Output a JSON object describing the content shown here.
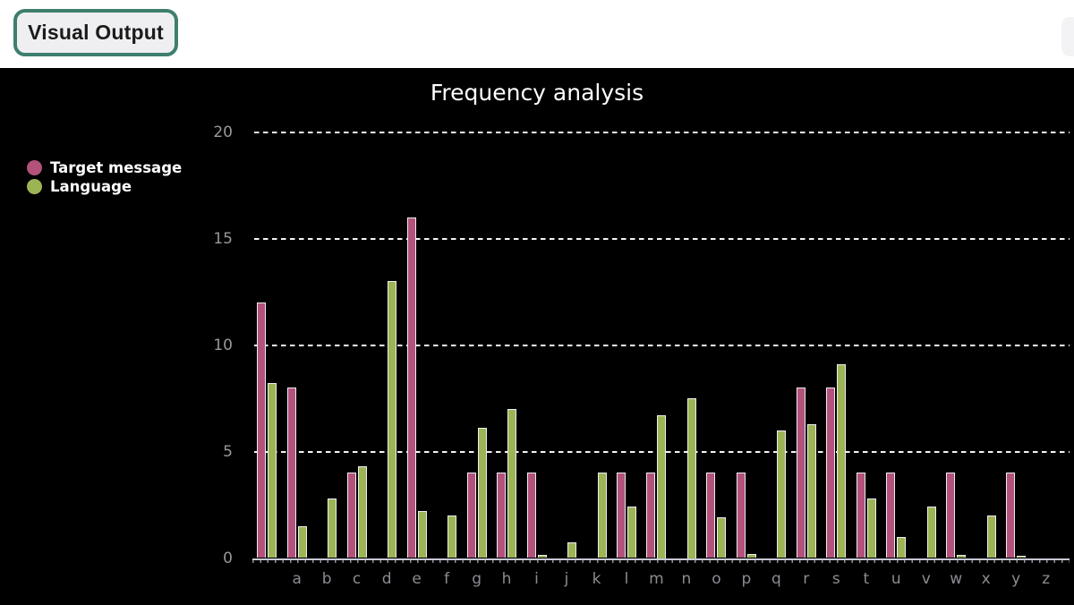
{
  "header": {
    "tab_label": "Visual Output",
    "tab_border_color": "#3e7e6e",
    "tab_background": "#efeff1"
  },
  "chart": {
    "background": "#000000",
    "title_color": "#ffffff",
    "gridline_color": "#f4f4f4",
    "axis_line_color": "#c6c8d4",
    "tick_label_color": "#97979d",
    "bar_outline_color": "#edecf2"
  },
  "chart_data": {
    "type": "bar",
    "title": "Frequency analysis",
    "categories": [
      "",
      "a",
      "b",
      "c",
      "d",
      "e",
      "f",
      "g",
      "h",
      "i",
      "j",
      "k",
      "l",
      "m",
      "n",
      "o",
      "p",
      "q",
      "r",
      "s",
      "t",
      "u",
      "v",
      "w",
      "x",
      "y",
      "z"
    ],
    "series": [
      {
        "name": "Target message",
        "color": "#b3527a",
        "values": [
          12,
          8,
          0,
          4,
          0,
          16,
          0,
          4,
          4,
          4,
          0,
          0,
          4,
          4,
          0,
          4,
          4,
          0,
          8,
          8,
          4,
          4,
          0,
          4,
          0,
          4,
          0
        ]
      },
      {
        "name": "Language",
        "color": "#9db455",
        "values": [
          8.2,
          1.5,
          2.8,
          4.3,
          13,
          2.2,
          2.0,
          6.1,
          7.0,
          0.15,
          0.75,
          4.0,
          2.4,
          6.7,
          7.5,
          1.9,
          0.2,
          6.0,
          6.3,
          9.1,
          2.8,
          1.0,
          2.4,
          0.15,
          2.0,
          0.1,
          0
        ]
      }
    ],
    "xlabel": "",
    "ylabel": "",
    "ylim": [
      0,
      20
    ],
    "yticks": [
      0,
      5,
      10,
      15,
      20
    ],
    "grid": "horizontal dashed white lines at 5, 10, 15, 20",
    "legend_position": "upper-left"
  }
}
